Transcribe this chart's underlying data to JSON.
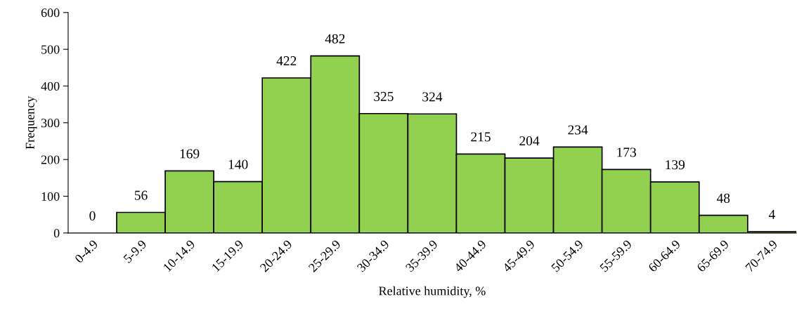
{
  "chart_data": {
    "type": "bar",
    "xlabel": "Relative humidity, %",
    "ylabel": "Frequency",
    "categories": [
      "0-4.9",
      "5-9.9",
      "10-14.9",
      "15-19.9",
      "20-24.9",
      "25-29.9",
      "30-34.9",
      "35-39.9",
      "40-44.9",
      "45-49.9",
      "50-54.9",
      "55-59.9",
      "60-64.9",
      "65-69.9",
      "70-74.9"
    ],
    "values": [
      0,
      56,
      169,
      140,
      422,
      482,
      325,
      324,
      215,
      204,
      234,
      173,
      139,
      48,
      4
    ],
    "color": "#92d050",
    "ylim": [
      0,
      600
    ],
    "yticks": [
      0,
      100,
      200,
      300,
      400,
      500,
      600
    ],
    "data_labels": true,
    "grid": false
  }
}
